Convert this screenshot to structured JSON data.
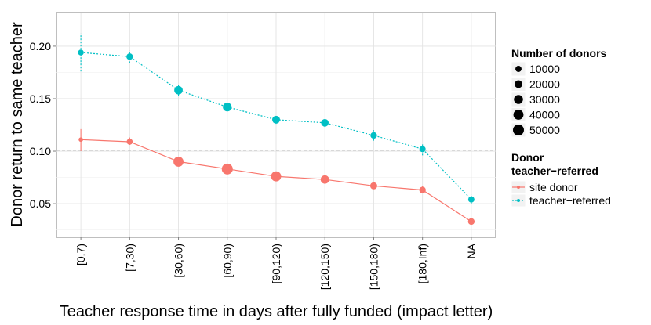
{
  "chart_data": {
    "type": "line",
    "title": "",
    "xlabel": "Teacher response time in days after fully funded (impact letter)",
    "ylabel": "Donor return to same teacher",
    "categories": [
      "[0,7)",
      "[7,30)",
      "[30,60)",
      "[60,90)",
      "[90,120)",
      "[120,150)",
      "[150,180)",
      "[180,Inf)",
      "NA"
    ],
    "ylim": [
      0.018,
      0.232
    ],
    "yticks": [
      0.05,
      0.1,
      0.15,
      0.2
    ],
    "ytick_labels": [
      "0.05",
      "0.10",
      "0.15",
      "0.20"
    ],
    "reference_line": 0.101,
    "grid": true,
    "series": [
      {
        "name": "site donor",
        "color": "#F8766D",
        "linestyle": "solid",
        "values": [
          0.111,
          0.109,
          0.09,
          0.083,
          0.076,
          0.073,
          0.067,
          0.063,
          0.033
        ],
        "error_low": [
          0.1,
          0.106,
          0.088,
          0.081,
          0.074,
          0.071,
          0.065,
          0.06,
          0.031
        ],
        "error_high": [
          0.121,
          0.113,
          0.093,
          0.086,
          0.078,
          0.075,
          0.07,
          0.067,
          0.035
        ],
        "donors": [
          3000,
          9000,
          40000,
          50000,
          40000,
          25000,
          15000,
          12000,
          12000
        ]
      },
      {
        "name": "teacher-referred",
        "color": "#00BFC4",
        "linestyle": "dotted",
        "values": [
          0.194,
          0.19,
          0.158,
          0.142,
          0.13,
          0.127,
          0.115,
          0.102,
          0.054
        ],
        "error_low": [
          0.176,
          0.184,
          0.153,
          0.139,
          0.126,
          0.123,
          0.11,
          0.096,
          0.05
        ],
        "error_high": [
          0.212,
          0.196,
          0.163,
          0.145,
          0.134,
          0.131,
          0.12,
          0.108,
          0.059
        ],
        "donors": [
          8000,
          12000,
          25000,
          28000,
          20000,
          18000,
          12000,
          10000,
          10000
        ]
      }
    ],
    "size_legend": {
      "title": "Number of donors",
      "entries": [
        "10000",
        "20000",
        "30000",
        "40000",
        "50000"
      ],
      "values": [
        10000,
        20000,
        30000,
        40000,
        50000
      ]
    },
    "color_legend": {
      "title_line1": "Donor",
      "title_line2": "teacher−referred",
      "entries": [
        "site donor",
        "teacher−referred"
      ]
    },
    "xtick_labels": [
      "[0,7)",
      "[7,30)",
      "[30,60)",
      "[60,90)",
      "[90,120)",
      "[120,150)",
      "[150,180)",
      "[180,Inf)",
      "NA"
    ]
  }
}
